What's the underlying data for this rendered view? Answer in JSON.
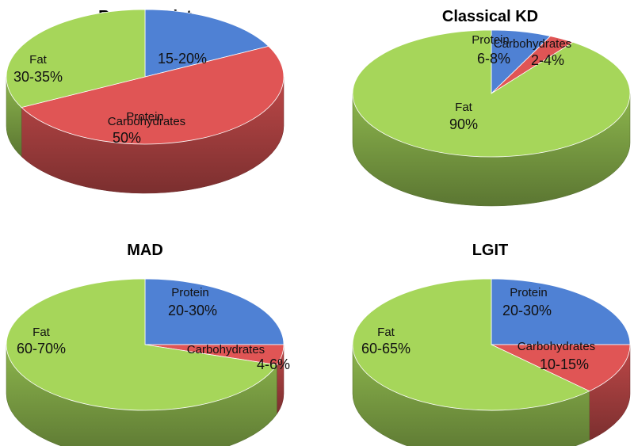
{
  "chart_data": [
    {
      "type": "pie",
      "title": "Regular Diet",
      "slices": [
        {
          "label": "Protein",
          "value_text": "15-20%",
          "value": 17.5,
          "color": "#4f81d4"
        },
        {
          "label": "Carbohydrates",
          "value_text": "50%",
          "value": 50,
          "color": "#e05555"
        },
        {
          "label": "Fat",
          "value_text": "30-35%",
          "value": 32.5,
          "color": "#a6d65a"
        }
      ]
    },
    {
      "type": "pie",
      "title": "Classical KD",
      "slices": [
        {
          "label": "Protein",
          "value_text": "6-8%",
          "value": 7,
          "color": "#4f81d4"
        },
        {
          "label": "Carbohydrates",
          "value_text": "2-4%",
          "value": 3,
          "color": "#e05555"
        },
        {
          "label": "Fat",
          "value_text": "90%",
          "value": 90,
          "color": "#a6d65a"
        }
      ]
    },
    {
      "type": "pie",
      "title": "MAD",
      "slices": [
        {
          "label": "Protein",
          "value_text": "20-30%",
          "value": 25,
          "color": "#4f81d4"
        },
        {
          "label": "Carbohydrates",
          "value_text": "4-6%",
          "value": 5,
          "color": "#e05555"
        },
        {
          "label": "Fat",
          "value_text": "60-70%",
          "value": 70,
          "color": "#a6d65a"
        }
      ]
    },
    {
      "type": "pie",
      "title": "LGIT",
      "slices": [
        {
          "label": "Protein",
          "value_text": "20-30%",
          "value": 25,
          "color": "#4f81d4"
        },
        {
          "label": "Carbohydrates",
          "value_text": "10-15%",
          "value": 12.5,
          "color": "#e05555"
        },
        {
          "label": "Fat",
          "value_text": "60-65%",
          "value": 62.5,
          "color": "#a6d65a"
        }
      ]
    }
  ]
}
